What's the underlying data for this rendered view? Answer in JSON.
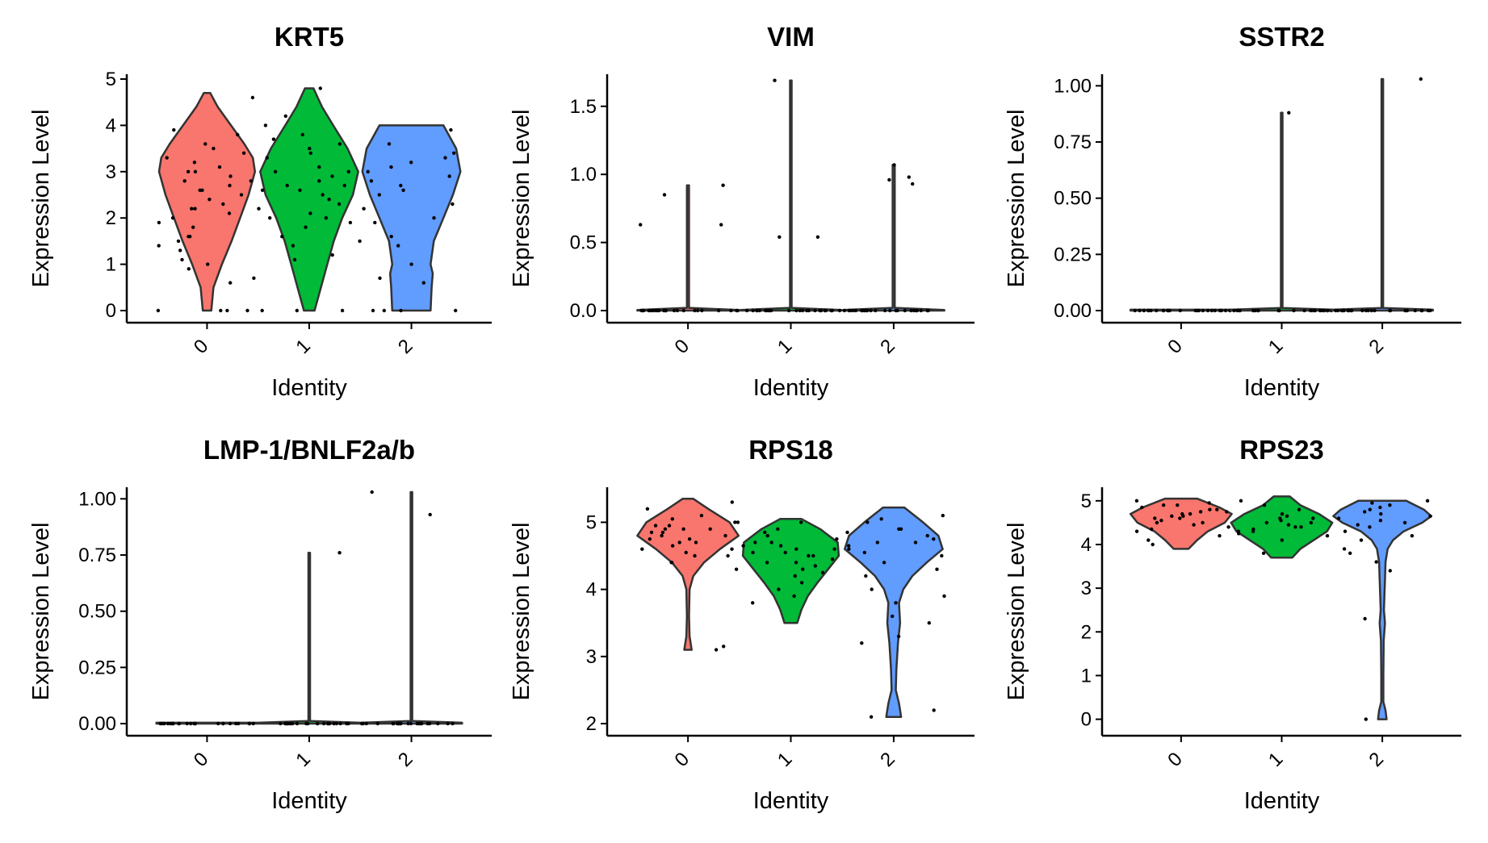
{
  "colors": {
    "0": "#F8766D",
    "1": "#00BA38",
    "2": "#619CFF",
    "outline": "#333333",
    "point": "#000000"
  },
  "chart_data": [
    {
      "type": "violin",
      "title": "KRT5",
      "xlabel": "Identity",
      "ylabel": "Expression Level",
      "categories": [
        "0",
        "1",
        "2"
      ],
      "ylim": [
        0,
        5
      ],
      "yticks": [
        "0",
        "1",
        "2",
        "3",
        "4",
        "5"
      ],
      "series": [
        {
          "max": 4.7,
          "profile": [
            [
              0,
              0.08
            ],
            [
              0.5,
              0.12
            ],
            [
              1,
              0.28
            ],
            [
              1.5,
              0.46
            ],
            [
              2,
              0.62
            ],
            [
              2.5,
              0.78
            ],
            [
              3,
              0.9
            ],
            [
              3.3,
              0.86
            ],
            [
              3.6,
              0.7
            ],
            [
              4,
              0.45
            ],
            [
              4.4,
              0.2
            ],
            [
              4.7,
              0.06
            ]
          ]
        },
        {
          "max": 4.8,
          "profile": [
            [
              0,
              0.1
            ],
            [
              0.5,
              0.22
            ],
            [
              1,
              0.34
            ],
            [
              1.5,
              0.46
            ],
            [
              2,
              0.62
            ],
            [
              2.5,
              0.82
            ],
            [
              3,
              0.92
            ],
            [
              3.5,
              0.72
            ],
            [
              4,
              0.45
            ],
            [
              4.4,
              0.24
            ],
            [
              4.8,
              0.08
            ]
          ]
        },
        {
          "max": 4.0,
          "profile": [
            [
              0,
              0.36
            ],
            [
              0.5,
              0.38
            ],
            [
              0.8,
              0.4
            ],
            [
              1,
              0.36
            ],
            [
              1.5,
              0.42
            ],
            [
              2,
              0.6
            ],
            [
              2.5,
              0.78
            ],
            [
              3,
              0.92
            ],
            [
              3.5,
              0.84
            ],
            [
              4,
              0.6
            ]
          ]
        }
      ],
      "points": [
        [
          1.6,
          1.5,
          2.8,
          3.0,
          2.3,
          1.1,
          0.7,
          2.6,
          3.2,
          3.6,
          4.6,
          2.1,
          1.8,
          0.0,
          0.0,
          0.0,
          0.0,
          2.9,
          3.4,
          2.0,
          1.3,
          0.9,
          2.5,
          3.1,
          3.8,
          2.2,
          1.6,
          2.7,
          3.3,
          0.6,
          1.0,
          2.4,
          2.8,
          3.5,
          1.9,
          2.2,
          3.0,
          1.4,
          2.6,
          3.9
        ],
        [
          4.8,
          4.0,
          3.5,
          3.0,
          2.7,
          2.4,
          2.0,
          1.8,
          1.5,
          1.1,
          0.0,
          0.0,
          0.0,
          2.6,
          3.1,
          3.7,
          2.2,
          2.9,
          3.3,
          1.6,
          2.5,
          2.8,
          3.4,
          1.2,
          2.0,
          4.2,
          3.8,
          2.6,
          1.9,
          3.0,
          2.3,
          2.7,
          1.4,
          3.6,
          2.1
        ],
        [
          3.9,
          3.4,
          3.0,
          2.7,
          2.3,
          1.9,
          1.4,
          1.0,
          0.6,
          0.0,
          0.0,
          0.0,
          0.0,
          2.5,
          3.2,
          3.6,
          2.8,
          2.0,
          1.6,
          3.1,
          2.2,
          2.9,
          0.7,
          3.3,
          2.6
        ]
      ]
    },
    {
      "type": "violin",
      "title": "VIM",
      "xlabel": "Identity",
      "ylabel": "Expression Level",
      "categories": [
        "0",
        "1",
        "2"
      ],
      "ylim": [
        0,
        1.7
      ],
      "yticks": [
        "0.0",
        "0.5",
        "1.0",
        "1.5"
      ],
      "series": [
        {
          "max": 0.92,
          "profile": [
            [
              0,
              0.95
            ],
            [
              0.004,
              0.95
            ],
            [
              0.02,
              0.02
            ],
            [
              0.92,
              0.02
            ]
          ]
        },
        {
          "max": 1.69,
          "profile": [
            [
              0,
              0.95
            ],
            [
              0.004,
              0.95
            ],
            [
              0.02,
              0.015
            ],
            [
              1.69,
              0.015
            ]
          ]
        },
        {
          "max": 1.07,
          "profile": [
            [
              0,
              0.95
            ],
            [
              0.004,
              0.95
            ],
            [
              0.02,
              0.02
            ],
            [
              1.07,
              0.02
            ]
          ]
        }
      ],
      "points": [
        [
          0,
          0,
          0,
          0,
          0,
          0,
          0,
          0,
          0,
          0,
          0,
          0,
          0,
          0,
          0,
          0,
          0,
          0,
          0,
          0,
          0,
          0,
          0,
          0,
          0.63,
          0.92,
          0.85,
          0.63
        ],
        [
          0,
          0,
          0,
          0,
          0,
          0,
          0,
          0,
          0,
          0,
          0,
          0,
          0,
          0,
          0,
          0,
          0,
          0,
          0,
          0,
          0,
          0,
          0,
          0,
          1.69,
          0.54,
          0.54
        ],
        [
          0,
          0,
          0,
          0,
          0,
          0,
          0,
          0,
          0,
          0,
          0,
          0,
          0,
          0,
          0,
          0,
          0,
          0,
          0,
          0,
          0,
          0,
          0,
          0,
          0.98,
          0.93,
          1.07,
          0.96
        ]
      ]
    },
    {
      "type": "violin",
      "title": "SSTR2",
      "xlabel": "Identity",
      "ylabel": "Expression Level",
      "categories": [
        "0",
        "1",
        "2"
      ],
      "ylim": [
        0,
        1.03
      ],
      "yticks": [
        "0.00",
        "0.25",
        "0.50",
        "0.75",
        "1.00"
      ],
      "series": [
        {
          "max": 0,
          "profile": [
            [
              0,
              0.95
            ],
            [
              0.004,
              0.95
            ]
          ]
        },
        {
          "max": 0.88,
          "profile": [
            [
              0,
              0.95
            ],
            [
              0.004,
              0.95
            ],
            [
              0.012,
              0.015
            ],
            [
              0.88,
              0.015
            ]
          ]
        },
        {
          "max": 1.03,
          "profile": [
            [
              0,
              0.95
            ],
            [
              0.004,
              0.95
            ],
            [
              0.012,
              0.015
            ],
            [
              1.03,
              0.015
            ]
          ]
        }
      ],
      "points": [
        [
          0,
          0,
          0,
          0,
          0,
          0,
          0,
          0,
          0,
          0,
          0,
          0,
          0,
          0,
          0,
          0,
          0,
          0,
          0,
          0,
          0,
          0,
          0,
          0
        ],
        [
          0,
          0,
          0,
          0,
          0,
          0,
          0,
          0,
          0,
          0,
          0,
          0,
          0,
          0,
          0,
          0,
          0,
          0,
          0,
          0,
          0,
          0,
          0,
          0,
          0.88
        ],
        [
          0,
          0,
          0,
          0,
          0,
          0,
          0,
          0,
          0,
          0,
          0,
          0,
          0,
          0,
          0,
          0,
          0,
          0,
          0,
          0,
          0,
          0,
          0,
          0,
          1.03
        ]
      ]
    },
    {
      "type": "violin",
      "title": "LMP-1/BNLF2a/b",
      "xlabel": "Identity",
      "ylabel": "Expression Level",
      "categories": [
        "0",
        "1",
        "2"
      ],
      "ylim": [
        0,
        1.03
      ],
      "yticks": [
        "0.00",
        "0.25",
        "0.50",
        "0.75",
        "1.00"
      ],
      "series": [
        {
          "max": 0,
          "profile": [
            [
              0,
              0.95
            ],
            [
              0.004,
              0.95
            ]
          ]
        },
        {
          "max": 0.76,
          "profile": [
            [
              0,
              0.95
            ],
            [
              0.004,
              0.95
            ],
            [
              0.012,
              0.015
            ],
            [
              0.76,
              0.015
            ]
          ]
        },
        {
          "max": 1.03,
          "profile": [
            [
              0,
              0.95
            ],
            [
              0.004,
              0.95
            ],
            [
              0.012,
              0.015
            ],
            [
              1.03,
              0.015
            ]
          ]
        }
      ],
      "points": [
        [
          0,
          0,
          0,
          0,
          0,
          0,
          0,
          0,
          0,
          0,
          0,
          0,
          0,
          0,
          0,
          0,
          0,
          0,
          0,
          0,
          0,
          0,
          0,
          0
        ],
        [
          0,
          0,
          0,
          0,
          0,
          0,
          0,
          0,
          0,
          0,
          0,
          0,
          0,
          0,
          0,
          0,
          0,
          0,
          0,
          0,
          0,
          0,
          0,
          0,
          0.76
        ],
        [
          0,
          0,
          0,
          0,
          0,
          0,
          0,
          0,
          0,
          0,
          0,
          0,
          0,
          0,
          0,
          0,
          0,
          0,
          0,
          0,
          0,
          0,
          0,
          0,
          1.03,
          0.93
        ]
      ]
    },
    {
      "type": "violin",
      "title": "RPS18",
      "xlabel": "Identity",
      "ylabel": "Expression Level",
      "categories": [
        "0",
        "1",
        "2"
      ],
      "ylim": [
        2,
        5.45
      ],
      "yticks": [
        "2",
        "3",
        "4",
        "5"
      ],
      "series": [
        {
          "max": 5.35,
          "min": 3.1,
          "profile": [
            [
              3.1,
              0.07
            ],
            [
              3.3,
              0.03
            ],
            [
              3.6,
              0.02
            ],
            [
              4.0,
              0.03
            ],
            [
              4.2,
              0.1
            ],
            [
              4.4,
              0.3
            ],
            [
              4.6,
              0.6
            ],
            [
              4.8,
              0.95
            ],
            [
              5.0,
              0.78
            ],
            [
              5.2,
              0.38
            ],
            [
              5.35,
              0.1
            ]
          ]
        },
        {
          "max": 5.05,
          "min": 3.5,
          "profile": [
            [
              3.5,
              0.12
            ],
            [
              3.7,
              0.2
            ],
            [
              3.9,
              0.32
            ],
            [
              4.1,
              0.5
            ],
            [
              4.3,
              0.7
            ],
            [
              4.5,
              0.9
            ],
            [
              4.7,
              0.88
            ],
            [
              4.9,
              0.55
            ],
            [
              5.05,
              0.2
            ]
          ]
        },
        {
          "max": 5.22,
          "min": 2.1,
          "profile": [
            [
              2.1,
              0.14
            ],
            [
              2.3,
              0.1
            ],
            [
              2.5,
              0.04
            ],
            [
              2.8,
              0.05
            ],
            [
              3.2,
              0.08
            ],
            [
              3.5,
              0.12
            ],
            [
              3.8,
              0.1
            ],
            [
              4.0,
              0.18
            ],
            [
              4.2,
              0.35
            ],
            [
              4.4,
              0.62
            ],
            [
              4.6,
              0.92
            ],
            [
              4.8,
              0.84
            ],
            [
              5.0,
              0.55
            ],
            [
              5.22,
              0.2
            ]
          ]
        }
      ],
      "points": [
        [
          4.9,
          4.8,
          4.7,
          4.6,
          5.0,
          5.2,
          4.5,
          4.4,
          4.3,
          4.85,
          4.95,
          5.1,
          4.75,
          4.65,
          4.55,
          3.1,
          3.15,
          5.3,
          4.9,
          4.8,
          4.7,
          5.0,
          4.6,
          4.4,
          4.9,
          5.05,
          4.75,
          4.85,
          4.5,
          4.95
        ],
        [
          4.6,
          4.5,
          4.7,
          4.4,
          4.3,
          4.2,
          4.8,
          4.9,
          5.0,
          4.55,
          4.65,
          4.35,
          3.9,
          3.8,
          4.0,
          4.45,
          4.75,
          4.6,
          4.5,
          4.7,
          4.25,
          4.85,
          4.1,
          4.55,
          4.65,
          4.4
        ],
        [
          4.8,
          4.9,
          4.7,
          4.6,
          5.0,
          5.1,
          4.5,
          4.4,
          4.2,
          3.9,
          3.6,
          3.5,
          3.3,
          2.2,
          2.1,
          4.85,
          4.65,
          4.3,
          4.75,
          5.05,
          4.55,
          3.8,
          4.0,
          4.9,
          4.7,
          3.2
        ]
      ]
    },
    {
      "type": "violin",
      "title": "RPS23",
      "xlabel": "Identity",
      "ylabel": "Expression Level",
      "categories": [
        "0",
        "1",
        "2"
      ],
      "ylim": [
        -0.1,
        5.2
      ],
      "yticks": [
        "0",
        "1",
        "2",
        "3",
        "4",
        "5"
      ],
      "series": [
        {
          "max": 5.05,
          "min": 3.9,
          "profile": [
            [
              3.9,
              0.14
            ],
            [
              4.1,
              0.3
            ],
            [
              4.3,
              0.5
            ],
            [
              4.5,
              0.82
            ],
            [
              4.7,
              0.95
            ],
            [
              4.85,
              0.72
            ],
            [
              5.05,
              0.3
            ]
          ]
        },
        {
          "max": 5.1,
          "min": 3.7,
          "profile": [
            [
              3.7,
              0.2
            ],
            [
              3.9,
              0.35
            ],
            [
              4.1,
              0.6
            ],
            [
              4.3,
              0.85
            ],
            [
              4.5,
              0.95
            ],
            [
              4.7,
              0.7
            ],
            [
              4.9,
              0.35
            ],
            [
              5.1,
              0.15
            ]
          ]
        },
        {
          "max": 5.0,
          "min": 0.0,
          "profile": [
            [
              0.0,
              0.08
            ],
            [
              0.2,
              0.06
            ],
            [
              0.4,
              0.02
            ],
            [
              1.0,
              0.02
            ],
            [
              1.8,
              0.025
            ],
            [
              2.2,
              0.05
            ],
            [
              2.5,
              0.03
            ],
            [
              3.2,
              0.05
            ],
            [
              3.6,
              0.06
            ],
            [
              3.9,
              0.1
            ],
            [
              4.1,
              0.2
            ],
            [
              4.3,
              0.4
            ],
            [
              4.5,
              0.75
            ],
            [
              4.65,
              0.92
            ],
            [
              4.8,
              0.78
            ],
            [
              5.0,
              0.45
            ]
          ]
        }
      ],
      "points": [
        [
          4.7,
          4.8,
          4.6,
          4.5,
          4.9,
          5.0,
          4.4,
          4.3,
          4.2,
          4.75,
          4.65,
          4.85,
          4.55,
          4.95,
          4.1,
          4.0,
          4.7,
          4.6,
          4.8,
          4.5,
          4.9,
          4.45,
          4.35,
          4.65,
          4.75
        ],
        [
          4.5,
          4.4,
          4.6,
          4.3,
          4.2,
          4.7,
          4.8,
          5.0,
          4.1,
          4.45,
          4.55,
          4.35,
          3.8,
          4.65,
          4.25,
          4.5,
          4.4,
          4.6,
          4.3,
          4.9
        ],
        [
          4.6,
          4.7,
          4.8,
          4.5,
          4.9,
          5.0,
          4.4,
          4.3,
          3.9,
          3.6,
          3.4,
          2.3,
          0.0,
          4.75,
          4.65,
          4.55,
          4.2,
          4.85,
          4.1,
          4.95,
          4.45,
          3.8
        ]
      ]
    }
  ]
}
